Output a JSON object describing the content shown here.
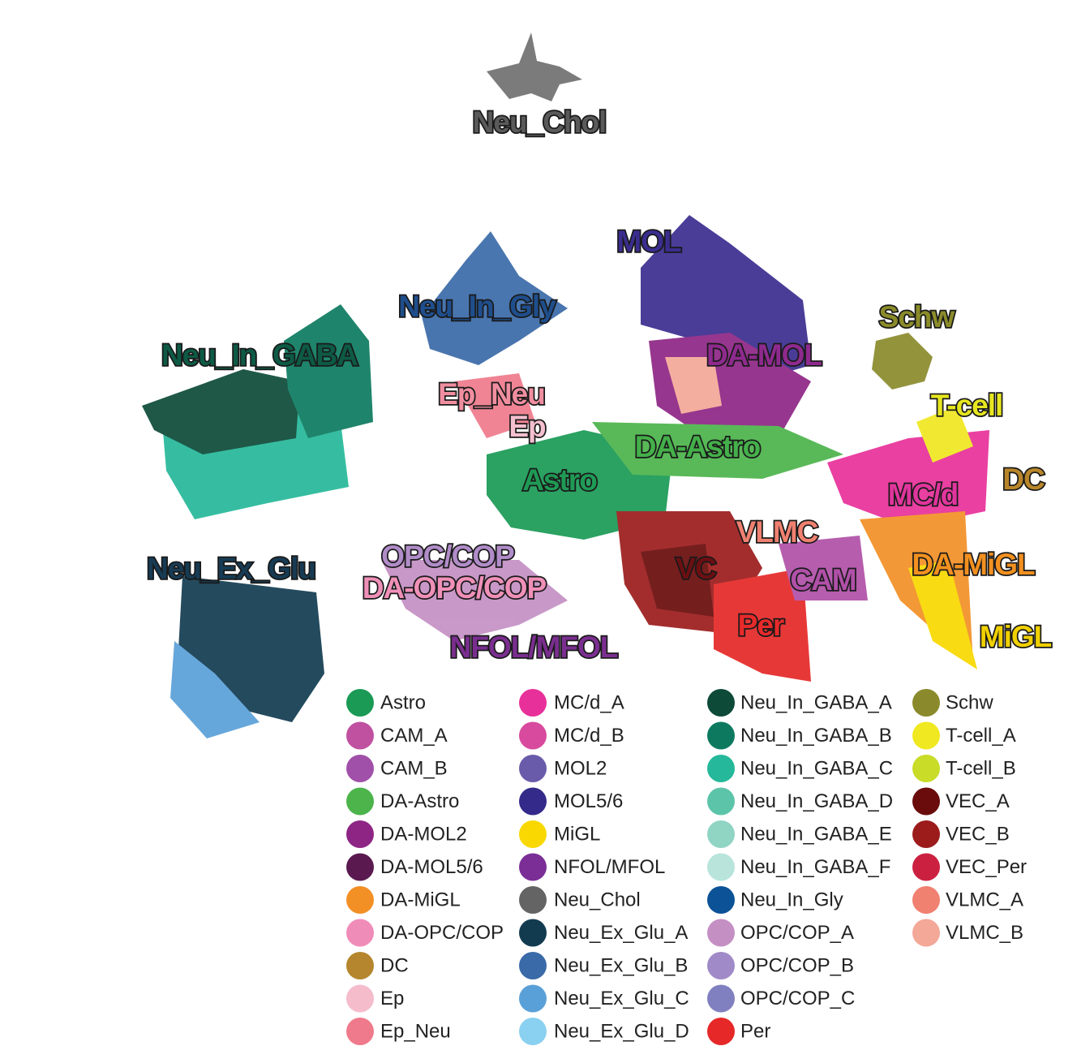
{
  "cluster_labels": [
    {
      "text": "Neu_Chol",
      "color": "#5a5a5a"
    },
    {
      "text": "MOL",
      "color": "#3a2d8f"
    },
    {
      "text": "Neu_In_Gly",
      "color": "#1f4e8c"
    },
    {
      "text": "Schw",
      "color": "#8b8b2a"
    },
    {
      "text": "Neu_In_GABA",
      "color": "#0d5a45"
    },
    {
      "text": "DA-MOL",
      "color": "#8e2a8e"
    },
    {
      "text": "Ep_Neu",
      "color": "#f08ea0"
    },
    {
      "text": "T-cell",
      "color": "#e6e620"
    },
    {
      "text": "Ep",
      "color": "#f4bfcf"
    },
    {
      "text": "DA-Astro",
      "color": "#44b04a"
    },
    {
      "text": "Astro",
      "color": "#1f9a55"
    },
    {
      "text": "DC",
      "color": "#b8862a"
    },
    {
      "text": "MC/d",
      "color": "#e0359c"
    },
    {
      "text": "VLMC",
      "color": "#f08070"
    },
    {
      "text": "OPC/COP",
      "color": "#b08cc8"
    },
    {
      "text": "Neu_Ex_Glu",
      "color": "#173b53"
    },
    {
      "text": "VC",
      "color": "#6b0f12"
    },
    {
      "text": "DA-MiGL",
      "color": "#f29020"
    },
    {
      "text": "CAM",
      "color": "#b050a8"
    },
    {
      "text": "DA-OPC/COP",
      "color": "#f090b8"
    },
    {
      "text": "Per",
      "color": "#e82a2a"
    },
    {
      "text": "NFOL/MFOL",
      "color": "#7a2e8f"
    },
    {
      "text": "MiGL",
      "color": "#f0d000"
    }
  ],
  "legend": [
    {
      "name": "Astro",
      "color": "#1a9a55"
    },
    {
      "name": "CAM_A",
      "color": "#c050a0"
    },
    {
      "name": "CAM_B",
      "color": "#a050a8"
    },
    {
      "name": "DA-Astro",
      "color": "#4cb44a"
    },
    {
      "name": "DA-MOL2",
      "color": "#8e2585"
    },
    {
      "name": "DA-MOL5/6",
      "color": "#5a1a50"
    },
    {
      "name": "DA-MiGL",
      "color": "#f39025"
    },
    {
      "name": "DA-OPC/COP",
      "color": "#f08cb8"
    },
    {
      "name": "DC",
      "color": "#b5862d"
    },
    {
      "name": "Ep",
      "color": "#f5bccc"
    },
    {
      "name": "Ep_Neu",
      "color": "#ef7a8c"
    },
    {
      "name": "MC/d_A",
      "color": "#e8309a"
    },
    {
      "name": "MC/d_B",
      "color": "#d84a9e"
    },
    {
      "name": "MOL2",
      "color": "#6a5aaa"
    },
    {
      "name": "MOL5/6",
      "color": "#342a8a"
    },
    {
      "name": "MiGL",
      "color": "#f8d800"
    },
    {
      "name": "NFOL/MFOL",
      "color": "#7a2e96"
    },
    {
      "name": "Neu_Chol",
      "color": "#646464"
    },
    {
      "name": "Neu_Ex_Glu_A",
      "color": "#123b50"
    },
    {
      "name": "Neu_Ex_Glu_B",
      "color": "#3a6aa8"
    },
    {
      "name": "Neu_Ex_Glu_C",
      "color": "#5aa0d8"
    },
    {
      "name": "Neu_Ex_Glu_D",
      "color": "#8ad0f0"
    },
    {
      "name": "Neu_In_GABA_A",
      "color": "#0d4a38"
    },
    {
      "name": "Neu_In_GABA_B",
      "color": "#0d7a60"
    },
    {
      "name": "Neu_In_GABA_C",
      "color": "#25b89a"
    },
    {
      "name": "Neu_In_GABA_D",
      "color": "#5cc4a8"
    },
    {
      "name": "Neu_In_GABA_E",
      "color": "#90d4c4"
    },
    {
      "name": "Neu_In_GABA_F",
      "color": "#b8e4dc"
    },
    {
      "name": "Neu_In_Gly",
      "color": "#0c5296"
    },
    {
      "name": "OPC/COP_A",
      "color": "#c490c4"
    },
    {
      "name": "OPC/COP_B",
      "color": "#a08ac8"
    },
    {
      "name": "OPC/COP_C",
      "color": "#8080c0"
    },
    {
      "name": "Per",
      "color": "#e62828"
    },
    {
      "name": "Schw",
      "color": "#8a8a2c"
    },
    {
      "name": "T-cell_A",
      "color": "#f0e820"
    },
    {
      "name": "T-cell_B",
      "color": "#c8dc28"
    },
    {
      "name": "VEC_A",
      "color": "#6a0c0c"
    },
    {
      "name": "VEC_B",
      "color": "#9c1c1c"
    },
    {
      "name": "VEC_Per",
      "color": "#cc2040"
    },
    {
      "name": "VLMC_A",
      "color": "#f08070"
    },
    {
      "name": "VLMC_B",
      "color": "#f4a898"
    }
  ]
}
